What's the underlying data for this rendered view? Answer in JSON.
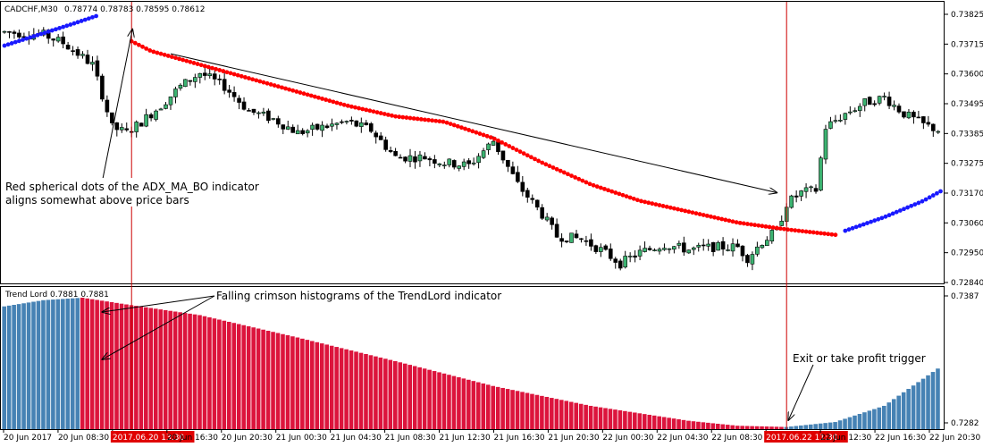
{
  "header": {
    "symbol": "CADCHF,M30",
    "ohlc": "0.78774 0.78783 0.78595 0.78612"
  },
  "indicator_header": "Trend Lord 0.7881 0.7881",
  "colors": {
    "bull_body": "#3cb371",
    "bear_body": "#000000",
    "bull_dot": "#1a1aff",
    "bear_dot": "#ff0000",
    "hist_up": "#4682b4",
    "hist_down": "#dc143c",
    "marker_line": "#cc0000",
    "time_highlight": "#e00000"
  },
  "annotations": {
    "dots_note_line1": "Red spherical dots of the ADX_MA_BO indicator",
    "dots_note_line2": "aligns somewhat above price bars",
    "histogram_note": "Falling crimson histograms of the TrendLord indicator",
    "exit_note": "Exit or take profit trigger"
  },
  "chart_data": [
    {
      "type": "candlestick",
      "title": "CADCHF,M30",
      "ylim": [
        0.7284,
        0.73825
      ],
      "y_ticks": [
        "0.73825",
        "0.73715",
        "0.73600",
        "0.73495",
        "0.73385",
        "0.73275",
        "0.73170",
        "0.73060",
        "0.72950",
        "0.72840"
      ],
      "close_path": [
        [
          0,
          0.7376
        ],
        [
          8,
          0.7375
        ],
        [
          12,
          0.7372
        ],
        [
          15,
          0.7368
        ],
        [
          18,
          0.7364
        ],
        [
          20,
          0.7353
        ],
        [
          22,
          0.7341
        ],
        [
          25,
          0.7339
        ],
        [
          28,
          0.7343
        ],
        [
          32,
          0.7349
        ],
        [
          36,
          0.7356
        ],
        [
          40,
          0.7361
        ],
        [
          45,
          0.7356
        ],
        [
          50,
          0.7347
        ],
        [
          55,
          0.7344
        ],
        [
          60,
          0.7339
        ],
        [
          65,
          0.7341
        ],
        [
          70,
          0.7343
        ],
        [
          75,
          0.734
        ],
        [
          80,
          0.733
        ],
        [
          86,
          0.733
        ],
        [
          90,
          0.7328
        ],
        [
          95,
          0.7327
        ],
        [
          100,
          0.7336
        ],
        [
          105,
          0.732
        ],
        [
          110,
          0.7309
        ],
        [
          113,
          0.7301
        ],
        [
          118,
          0.73
        ],
        [
          122,
          0.7296
        ],
        [
          126,
          0.7291
        ],
        [
          130,
          0.7295
        ],
        [
          135,
          0.7298
        ],
        [
          140,
          0.7296
        ],
        [
          145,
          0.7297
        ],
        [
          150,
          0.7297
        ],
        [
          152,
          0.7293
        ],
        [
          155,
          0.7299
        ],
        [
          158,
          0.7303
        ],
        [
          160,
          0.7313
        ],
        [
          163,
          0.7317
        ],
        [
          166,
          0.7318
        ],
        [
          168,
          0.7341
        ],
        [
          172,
          0.7346
        ],
        [
          176,
          0.735
        ],
        [
          180,
          0.7352
        ],
        [
          184,
          0.7346
        ],
        [
          188,
          0.7342
        ],
        [
          191,
          0.734
        ]
      ],
      "adx_ma_bo": {
        "blue_segment_1": [
          [
            0,
            0.7371
          ],
          [
            7,
            0.7375
          ],
          [
            14,
            0.7379
          ],
          [
            19,
            0.7382
          ]
        ],
        "red_dots": [
          [
            20,
            0.7378
          ],
          [
            30,
            0.7369
          ],
          [
            40,
            0.7364
          ],
          [
            50,
            0.7359
          ],
          [
            60,
            0.7354
          ],
          [
            70,
            0.7349
          ],
          [
            80,
            0.7345
          ],
          [
            90,
            0.7343
          ],
          [
            100,
            0.7337
          ],
          [
            110,
            0.7328
          ],
          [
            120,
            0.732
          ],
          [
            130,
            0.7314
          ],
          [
            140,
            0.731
          ],
          [
            150,
            0.7306
          ],
          [
            160,
            0.73035
          ],
          [
            170,
            0.73015
          ]
        ],
        "blue_segment_2": [
          [
            172,
            0.7303
          ],
          [
            180,
            0.7308
          ],
          [
            188,
            0.7314
          ],
          [
            192,
            0.7318
          ]
        ]
      },
      "marker_indices": [
        26,
        160
      ],
      "arrow_indices": [
        [
          34,
          0.7368
        ],
        [
          158,
          0.7317
        ]
      ]
    },
    {
      "type": "bar",
      "title": "Trend Lord",
      "ylim": [
        0.7282,
        0.7387
      ],
      "y_ticks": [
        "0.7387",
        "0.7282"
      ],
      "bars": 192,
      "crimson_start": 16,
      "crimson_end": 160,
      "profile": [
        [
          0,
          0.738
        ],
        [
          8,
          0.7385
        ],
        [
          16,
          0.7387
        ],
        [
          26,
          0.7381
        ],
        [
          40,
          0.7373
        ],
        [
          60,
          0.7355
        ],
        [
          80,
          0.7336
        ],
        [
          100,
          0.7316
        ],
        [
          120,
          0.73
        ],
        [
          140,
          0.7288
        ],
        [
          150,
          0.7284
        ],
        [
          160,
          0.7283
        ],
        [
          170,
          0.7287
        ],
        [
          180,
          0.73
        ],
        [
          191,
          0.733
        ]
      ]
    }
  ],
  "time_axis": [
    {
      "label": "20 Jun 2017",
      "highlight": false
    },
    {
      "label": "20 Jun 08:30",
      "highlight": false
    },
    {
      "label": "2017.06.20 13:30",
      "highlight": true
    },
    {
      "label": "20 Jun 16:30",
      "highlight": false
    },
    {
      "label": "20 Jun 20:30",
      "highlight": false
    },
    {
      "label": "21 Jun 00:30",
      "highlight": false
    },
    {
      "label": "21 Jun 04:30",
      "highlight": false
    },
    {
      "label": "21 Jun 08:30",
      "highlight": false
    },
    {
      "label": "21 Jun 12:30",
      "highlight": false
    },
    {
      "label": "21 Jun 16:30",
      "highlight": false
    },
    {
      "label": "21 Jun 20:30",
      "highlight": false
    },
    {
      "label": "22 Jun 00:30",
      "highlight": false
    },
    {
      "label": "22 Jun 04:30",
      "highlight": false
    },
    {
      "label": "22 Jun 08:30",
      "highlight": false
    },
    {
      "label": "2017.06.22 11:30",
      "highlight": true
    },
    {
      "label": "22 Jun 12:30",
      "highlight": false
    },
    {
      "label": "22 Jun 16:30",
      "highlight": false
    },
    {
      "label": "22 Jun 20:30",
      "highlight": false
    }
  ]
}
